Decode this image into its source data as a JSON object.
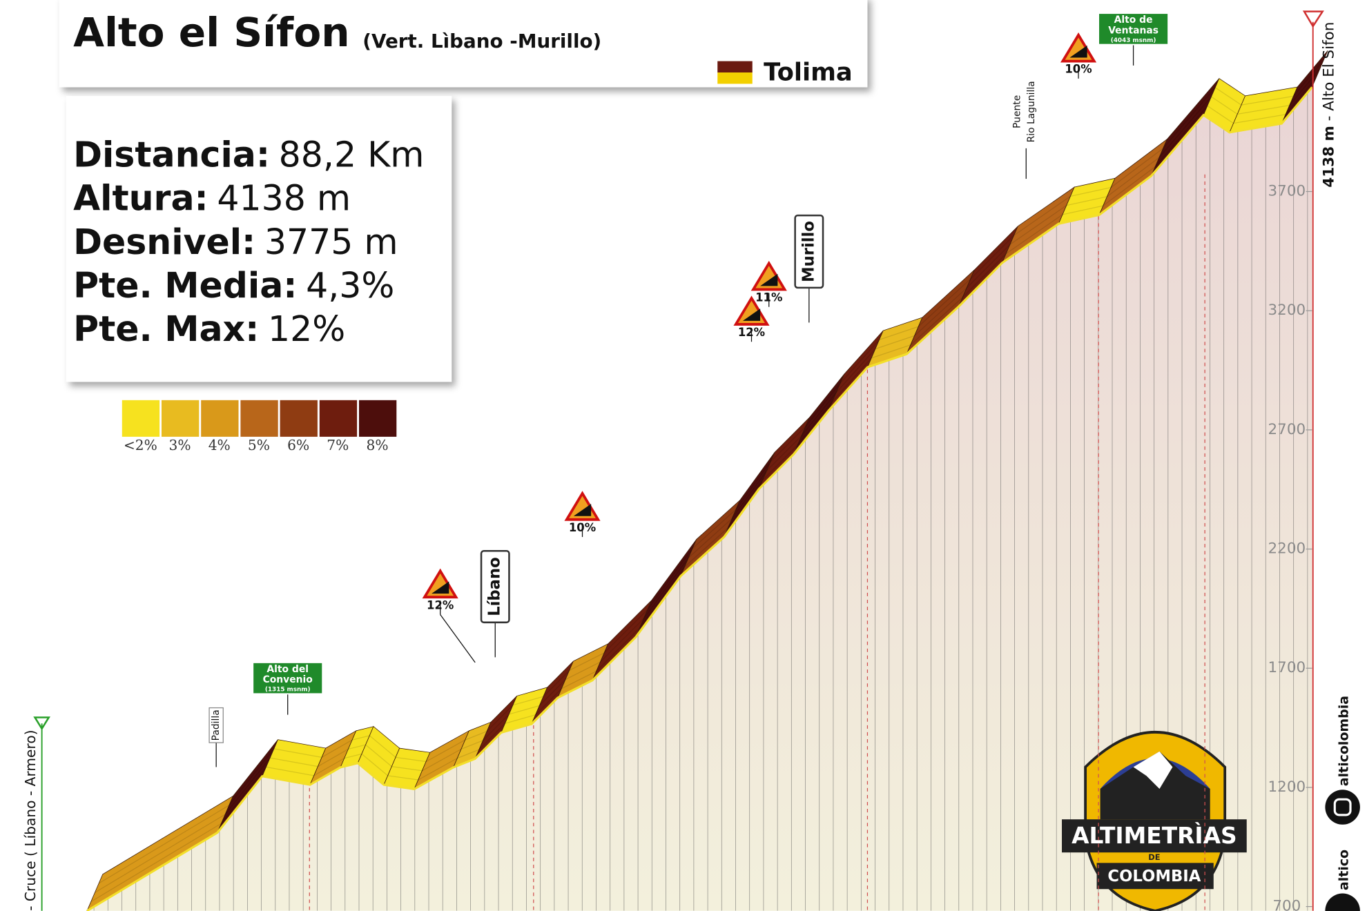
{
  "chart_data": {
    "type": "elevation-profile",
    "title": "Alto el Sífon",
    "subtitle": "(Vert. Lìbano -Murillo)",
    "region": "Tolima",
    "stats": [
      {
        "label": "Distancia:",
        "value": "88,2 Km"
      },
      {
        "label": "Altura:",
        "value": "4138 m"
      },
      {
        "label": "Desnivel:",
        "value": "3775 m"
      },
      {
        "label": "Pte. Media:",
        "value": "4,3%"
      },
      {
        "label": "Pte. Max:",
        "value": "12%"
      }
    ],
    "legend": [
      {
        "label": "<2%",
        "color": "#f6e21f"
      },
      {
        "label": "3%",
        "color": "#e8bb20"
      },
      {
        "label": "4%",
        "color": "#d9991a"
      },
      {
        "label": "5%",
        "color": "#b8661a"
      },
      {
        "label": "6%",
        "color": "#8f3c12"
      },
      {
        "label": "7%",
        "color": "#6e1d0e"
      },
      {
        "label": "8%",
        "color": "#4d0e0c"
      }
    ],
    "x": [
      3.6,
      12.6,
      15.7,
      19.0,
      21.1,
      22.3,
      24.1,
      26.2,
      28.9,
      30.4,
      32.2,
      34.3,
      36.1,
      38.5,
      41.5,
      44.6,
      47.6,
      50.0,
      52.4,
      54.8,
      57.5,
      60.2,
      63.8,
      66.8,
      70.7,
      73.5,
      77.1,
      80.7,
      82.5,
      86.1,
      88.2
    ],
    "values": [
      682,
      1010,
      1247,
      1211,
      1284,
      1302,
      1211,
      1193,
      1284,
      1320,
      1430,
      1466,
      1576,
      1649,
      1831,
      2087,
      2251,
      2452,
      2598,
      2780,
      2963,
      3018,
      3218,
      3401,
      3565,
      3602,
      3766,
      4021,
      3948,
      3985,
      4138
    ],
    "xlim": [
      0,
      88.2
    ],
    "ylim": [
      682,
      4503
    ],
    "yticks": [
      700,
      1200,
      1700,
      2200,
      2700,
      3200,
      3700
    ],
    "start_label": "- Cruce ( Líbano - Armero)",
    "end_label": [
      "4138 m",
      "- Alto El Sifon"
    ],
    "annotations": [
      "Padilla",
      "Alto del",
      "Convenio",
      "(1315 msnm)",
      "12%",
      "Líbano",
      "10%",
      "12%",
      "11%",
      "Murillo",
      "Puente",
      "Rio Lagunilla",
      "10%",
      "Alto de",
      "Ventanas",
      "(4043 msnm)"
    ],
    "branding": [
      "ALTIMETRÌAS",
      "DE",
      "COLOMBIA",
      "alticolombia",
      "altico"
    ]
  }
}
